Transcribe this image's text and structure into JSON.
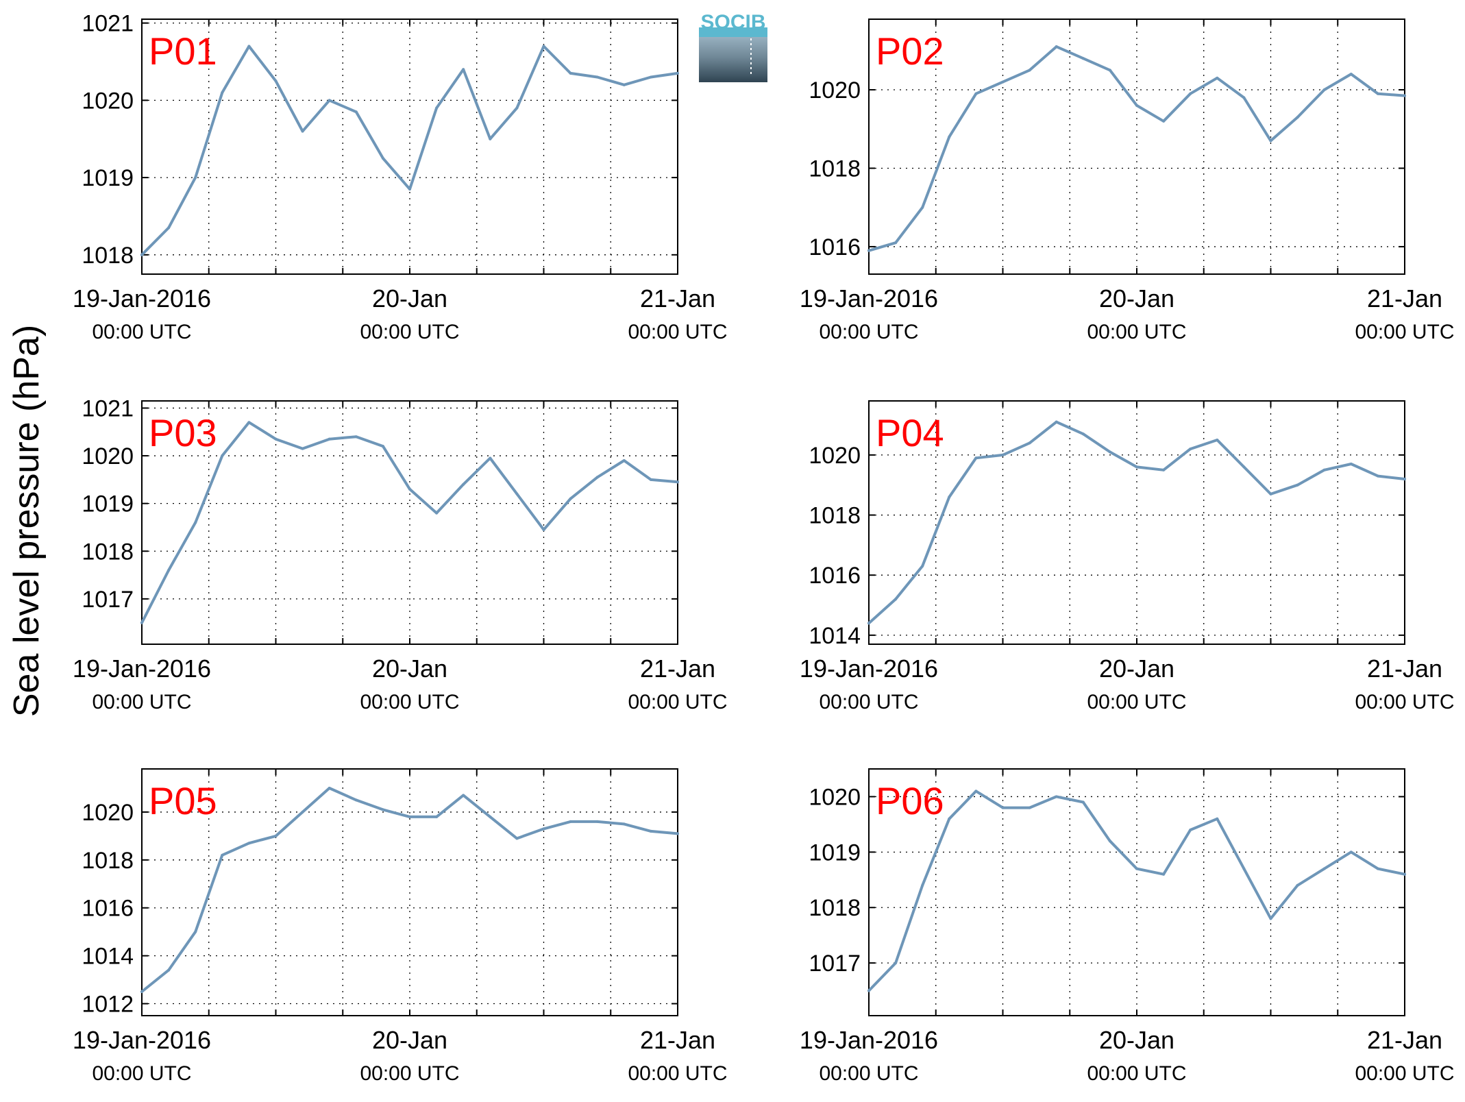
{
  "figure": {
    "ylabel": "Sea level pressure (hPa)",
    "logo_text": "SOCIB",
    "colors": {
      "line": "#6e96b8",
      "panel_label": "#ff0000",
      "logo": "#5bb8cf"
    }
  },
  "chart_data": [
    {
      "type": "line",
      "label": "P01",
      "x_ticks": [
        {
          "date": "19-Jan-2016",
          "time": "00:00 UTC"
        },
        {
          "date": "20-Jan",
          "time": "00:00 UTC"
        },
        {
          "date": "21-Jan",
          "time": "00:00 UTC"
        }
      ],
      "xlim": [
        "2016-01-19T00:00",
        "2016-01-21T00:00"
      ],
      "ylim": [
        1017.75,
        1021.05
      ],
      "yticks": [
        1018,
        1019,
        1020,
        1021
      ],
      "grid": true,
      "x": [
        0,
        0.1,
        0.2,
        0.3,
        0.4,
        0.5,
        0.6,
        0.7,
        0.8,
        0.9,
        1.0,
        1.1,
        1.2,
        1.3,
        1.4,
        1.5,
        1.6,
        1.7,
        1.8,
        1.9,
        2.0
      ],
      "values": [
        1018.0,
        1018.35,
        1019.0,
        1020.1,
        1020.7,
        1020.25,
        1019.6,
        1020.0,
        1019.85,
        1019.25,
        1018.85,
        1019.9,
        1020.4,
        1019.5,
        1019.9,
        1020.7,
        1020.35,
        1020.3,
        1020.2,
        1020.3,
        1020.35
      ]
    },
    {
      "type": "line",
      "label": "P02",
      "x_ticks": [
        {
          "date": "19-Jan-2016",
          "time": "00:00 UTC"
        },
        {
          "date": "20-Jan",
          "time": "00:00 UTC"
        },
        {
          "date": "21-Jan",
          "time": "00:00 UTC"
        }
      ],
      "xlim": [
        "2016-01-19T00:00",
        "2016-01-21T00:00"
      ],
      "ylim": [
        1015.3,
        1021.8
      ],
      "yticks": [
        1016,
        1018,
        1020
      ],
      "grid": true,
      "x": [
        0,
        0.1,
        0.2,
        0.3,
        0.4,
        0.5,
        0.6,
        0.7,
        0.8,
        0.9,
        1.0,
        1.1,
        1.2,
        1.3,
        1.4,
        1.5,
        1.6,
        1.7,
        1.8,
        1.9,
        2.0
      ],
      "values": [
        1015.9,
        1016.1,
        1017.0,
        1018.8,
        1019.9,
        1020.2,
        1020.5,
        1021.1,
        1020.8,
        1020.5,
        1019.6,
        1019.2,
        1019.9,
        1020.3,
        1019.8,
        1018.7,
        1019.3,
        1020.0,
        1020.4,
        1019.9,
        1019.85
      ]
    },
    {
      "type": "line",
      "label": "P03",
      "x_ticks": [
        {
          "date": "19-Jan-2016",
          "time": "00:00 UTC"
        },
        {
          "date": "20-Jan",
          "time": "00:00 UTC"
        },
        {
          "date": "21-Jan",
          "time": "00:00 UTC"
        }
      ],
      "xlim": [
        "2016-01-19T00:00",
        "2016-01-21T00:00"
      ],
      "ylim": [
        1016.05,
        1021.15
      ],
      "yticks": [
        1017,
        1018,
        1019,
        1020,
        1021
      ],
      "grid": true,
      "x": [
        0,
        0.1,
        0.2,
        0.3,
        0.4,
        0.5,
        0.6,
        0.7,
        0.8,
        0.9,
        1.0,
        1.1,
        1.2,
        1.3,
        1.4,
        1.5,
        1.6,
        1.7,
        1.8,
        1.9,
        2.0
      ],
      "values": [
        1016.5,
        1017.6,
        1018.6,
        1020.0,
        1020.7,
        1020.35,
        1020.15,
        1020.35,
        1020.4,
        1020.2,
        1019.3,
        1018.8,
        1019.4,
        1019.95,
        1019.2,
        1018.45,
        1019.1,
        1019.55,
        1019.9,
        1019.5,
        1019.45
      ]
    },
    {
      "type": "line",
      "label": "P04",
      "x_ticks": [
        {
          "date": "19-Jan-2016",
          "time": "00:00 UTC"
        },
        {
          "date": "20-Jan",
          "time": "00:00 UTC"
        },
        {
          "date": "21-Jan",
          "time": "00:00 UTC"
        }
      ],
      "xlim": [
        "2016-01-19T00:00",
        "2016-01-21T00:00"
      ],
      "ylim": [
        1013.7,
        1021.8
      ],
      "yticks": [
        1014,
        1016,
        1018,
        1020
      ],
      "grid": true,
      "x": [
        0,
        0.1,
        0.2,
        0.3,
        0.4,
        0.5,
        0.6,
        0.7,
        0.8,
        0.9,
        1.0,
        1.1,
        1.2,
        1.3,
        1.4,
        1.5,
        1.6,
        1.7,
        1.8,
        1.9,
        2.0
      ],
      "values": [
        1014.4,
        1015.2,
        1016.3,
        1018.6,
        1019.9,
        1020.0,
        1020.4,
        1021.1,
        1020.7,
        1020.1,
        1019.6,
        1019.5,
        1020.2,
        1020.5,
        1019.6,
        1018.7,
        1019.0,
        1019.5,
        1019.7,
        1019.3,
        1019.2
      ]
    },
    {
      "type": "line",
      "label": "P05",
      "x_ticks": [
        {
          "date": "19-Jan-2016",
          "time": "00:00 UTC"
        },
        {
          "date": "20-Jan",
          "time": "00:00 UTC"
        },
        {
          "date": "21-Jan",
          "time": "00:00 UTC"
        }
      ],
      "xlim": [
        "2016-01-19T00:00",
        "2016-01-21T00:00"
      ],
      "ylim": [
        1011.5,
        1021.8
      ],
      "yticks": [
        1012,
        1014,
        1016,
        1018,
        1020
      ],
      "grid": true,
      "x": [
        0,
        0.1,
        0.2,
        0.3,
        0.4,
        0.5,
        0.6,
        0.7,
        0.8,
        0.9,
        1.0,
        1.1,
        1.2,
        1.3,
        1.4,
        1.5,
        1.6,
        1.7,
        1.8,
        1.9,
        2.0
      ],
      "values": [
        1012.5,
        1013.4,
        1015.0,
        1018.2,
        1018.7,
        1019.0,
        1020.0,
        1021.0,
        1020.5,
        1020.1,
        1019.8,
        1019.8,
        1020.7,
        1019.8,
        1018.9,
        1019.3,
        1019.6,
        1019.6,
        1019.5,
        1019.2,
        1019.1
      ]
    },
    {
      "type": "line",
      "label": "P06",
      "x_ticks": [
        {
          "date": "19-Jan-2016",
          "time": "00:00 UTC"
        },
        {
          "date": "20-Jan",
          "time": "00:00 UTC"
        },
        {
          "date": "21-Jan",
          "time": "00:00 UTC"
        }
      ],
      "xlim": [
        "2016-01-19T00:00",
        "2016-01-21T00:00"
      ],
      "ylim": [
        1016.05,
        1020.5
      ],
      "yticks": [
        1017,
        1018,
        1019,
        1020
      ],
      "grid": true,
      "x": [
        0,
        0.1,
        0.2,
        0.3,
        0.4,
        0.5,
        0.6,
        0.7,
        0.8,
        0.9,
        1.0,
        1.1,
        1.2,
        1.3,
        1.4,
        1.5,
        1.6,
        1.7,
        1.8,
        1.9,
        2.0
      ],
      "values": [
        1016.5,
        1017.0,
        1018.4,
        1019.6,
        1020.1,
        1019.8,
        1019.8,
        1020.0,
        1019.9,
        1019.2,
        1018.7,
        1018.6,
        1019.4,
        1019.6,
        1018.7,
        1017.8,
        1018.4,
        1018.7,
        1019.0,
        1018.7,
        1018.6
      ]
    }
  ]
}
